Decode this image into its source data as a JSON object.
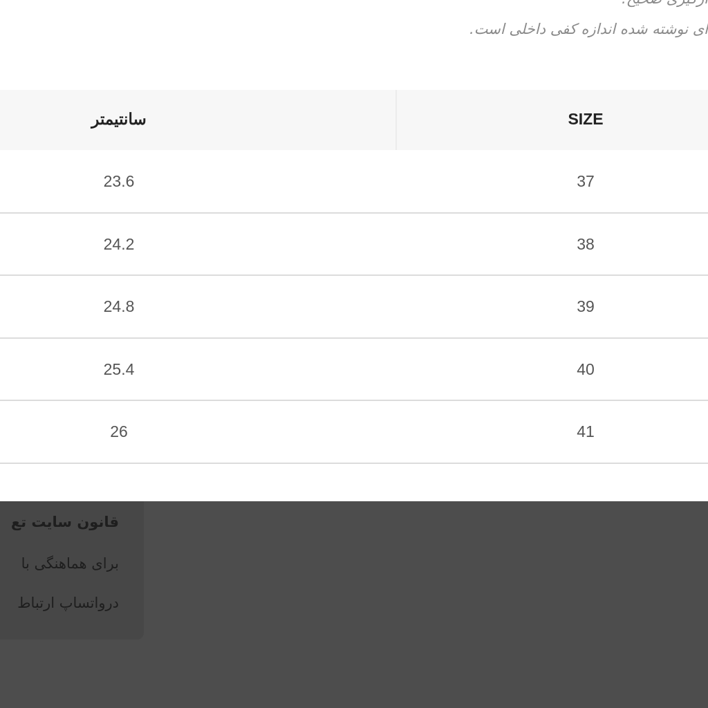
{
  "header": {
    "lines": [
      "ازگیری صحیح.",
      "ای نوشته شده اندازه کفی داخلی است."
    ]
  },
  "table": {
    "headers": [
      "سانتیمتر",
      "SIZE"
    ],
    "rows": [
      [
        "23.6",
        "37"
      ],
      [
        "24.2",
        "38"
      ],
      [
        "24.8",
        "39"
      ],
      [
        "25.4",
        "40"
      ],
      [
        "26",
        "41"
      ]
    ]
  },
  "popup": {
    "title": "قانون سایت تع",
    "lines": [
      "برای هماهنگی با",
      "درواتساپ ارتباط"
    ]
  }
}
